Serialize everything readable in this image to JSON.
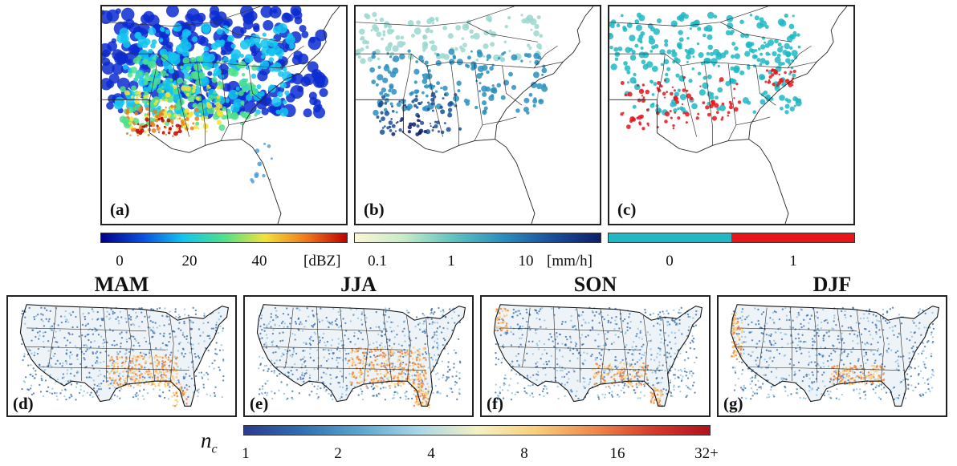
{
  "top_panels": [
    {
      "label": "(a)"
    },
    {
      "label": "(b)"
    },
    {
      "label": "(c)"
    }
  ],
  "colorbars": {
    "dbz": {
      "ticks": [
        "0",
        "20",
        "40"
      ],
      "unit": "[dBZ]",
      "colors": [
        "#00008b",
        "#0a4de0",
        "#12c4f0",
        "#4ee08a",
        "#f2e23a",
        "#f07a1a",
        "#c00000"
      ]
    },
    "rain": {
      "ticks": [
        "0.1",
        "1",
        "10"
      ],
      "unit": "[mm/h]",
      "colors": [
        "#fbf6d4",
        "#c6ebc8",
        "#5fc3c0",
        "#2a8fbf",
        "#1a4f9a",
        "#0d1f6b"
      ]
    },
    "binary": {
      "ticks": [
        "0",
        "1"
      ],
      "colors": [
        "#1fb8c4",
        "#e8141a"
      ]
    }
  },
  "season_panels": [
    {
      "title": "MAM",
      "label": "(d)"
    },
    {
      "title": "JJA",
      "label": "(e)"
    },
    {
      "title": "SON",
      "label": "(f)"
    },
    {
      "title": "DJF",
      "label": "(g)"
    }
  ],
  "count_colorbar": {
    "symbol": "n",
    "subscript": "c",
    "ticks": [
      "1",
      "2",
      "4",
      "8",
      "16",
      "32+"
    ],
    "colors": [
      "#2b3a8f",
      "#2f6fb3",
      "#5aa6cf",
      "#a8d6e8",
      "#f4f0c2",
      "#f9cf7a",
      "#f08a4a",
      "#d73a2a",
      "#b2101e"
    ]
  }
}
